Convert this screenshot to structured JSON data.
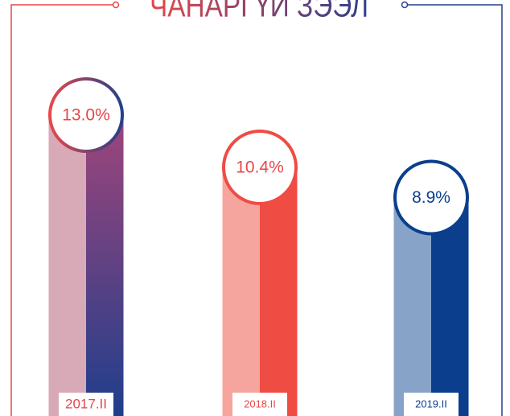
{
  "chart_data": {
    "type": "bar",
    "title": "ЧАНАРГҮЙ ЗЭЭЛ",
    "categories": [
      "2017.II",
      "2018.II",
      "2019.II"
    ],
    "values": [
      13.0,
      10.4,
      8.9
    ],
    "value_labels": [
      "13.0%",
      "10.4%",
      "8.9%"
    ],
    "colors": [
      [
        "#d8aab8",
        "#7a3f74",
        "#e2474c"
      ],
      [
        "#f6a59e",
        "#ef4c44",
        "#e8474a"
      ],
      [
        "#87a4c8",
        "#0b3f8d",
        "#0b3f8d"
      ]
    ]
  }
}
